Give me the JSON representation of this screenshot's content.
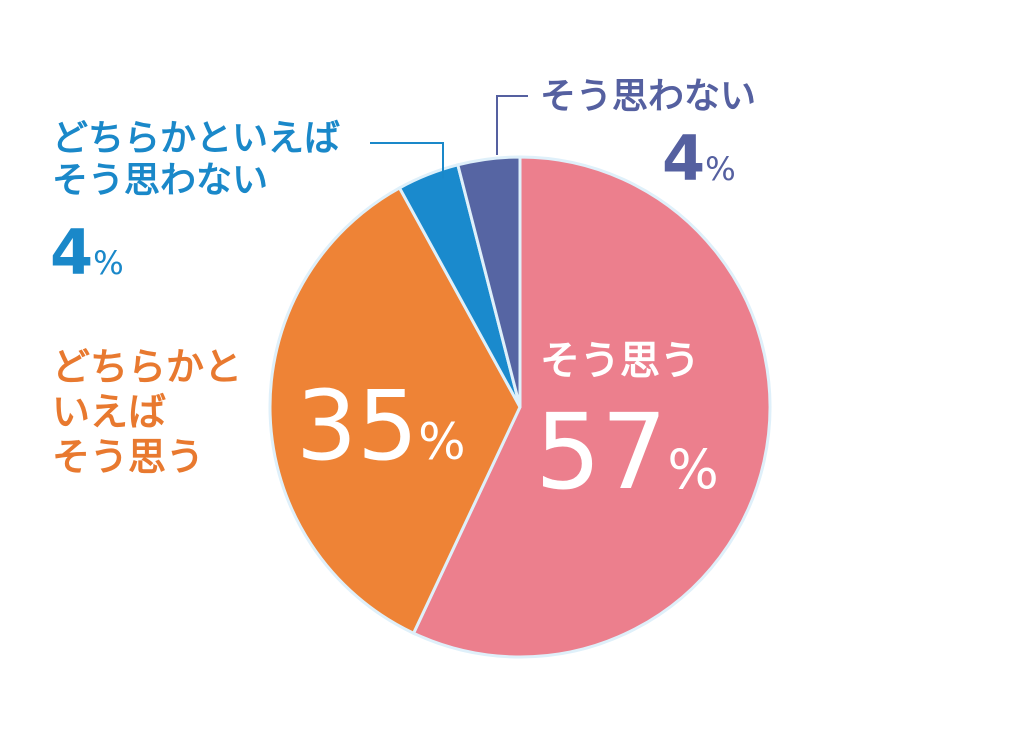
{
  "chart_data": {
    "type": "pie",
    "categories": [
      "そう思う",
      "どちらかといえばそう思う",
      "どちらかといえばそう思わない",
      "そう思わない"
    ],
    "values": [
      57,
      35,
      4,
      4
    ],
    "unit": "%",
    "colors": [
      "#ec7f8d",
      "#ee8336",
      "#1a8acd",
      "#5665a3"
    ],
    "labels": {
      "agree": {
        "name": "そう思う",
        "value": "57",
        "unit": "%"
      },
      "somewhat_agree": {
        "name": "どちらかといえばそう思う",
        "lines": [
          "どちらかと",
          "いえば",
          "そう思う"
        ],
        "value": "35",
        "unit": "%"
      },
      "somewhat_disagree": {
        "name": "どちらかといえばそう思わない",
        "lines": [
          "どちらかといえば",
          "そう思わない"
        ],
        "value": "4",
        "unit": "%"
      },
      "disagree": {
        "name": "そう思わない",
        "value": "4",
        "unit": "%"
      }
    }
  }
}
